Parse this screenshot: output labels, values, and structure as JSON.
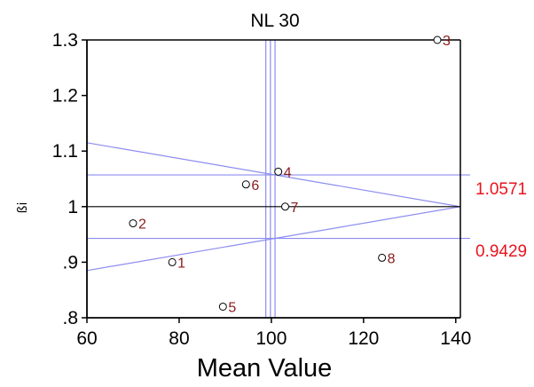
{
  "chart_data": {
    "type": "scatter",
    "title": "NL 30",
    "xlabel": "Mean Value",
    "ylabel": "ßi",
    "xlim": [
      60,
      141
    ],
    "ylim": [
      0.8,
      1.3
    ],
    "xticks": [
      "60",
      "80",
      "100",
      "120",
      "140"
    ],
    "yticks": [
      "1.3",
      "1.2",
      "1.1",
      "1",
      ".9",
      ".8"
    ],
    "points": [
      {
        "label": "1",
        "x": 78.5,
        "y": 0.9
      },
      {
        "label": "2",
        "x": 70.0,
        "y": 0.97
      },
      {
        "label": "3",
        "x": 136.0,
        "y": 1.3
      },
      {
        "label": "4",
        "x": 101.5,
        "y": 1.063
      },
      {
        "label": "5",
        "x": 89.5,
        "y": 0.82
      },
      {
        "label": "6",
        "x": 94.5,
        "y": 1.04
      },
      {
        "label": "7",
        "x": 103.0,
        "y": 1.0
      },
      {
        "label": "8",
        "x": 124.0,
        "y": 0.908
      }
    ],
    "reference_lines": {
      "upper_limit": 1.0571,
      "lower_limit": 0.9429,
      "unit_line": 1,
      "mean_vertical": [
        98.8,
        99.8,
        100.8
      ],
      "limit_labels": [
        "1.0571",
        "0.9429"
      ],
      "cone_apex": [
        141,
        1
      ],
      "cone_left": {
        "x": 60,
        "y_upper": 1.115,
        "y_lower": 0.885
      }
    },
    "colors": {
      "reference": "#8c8cf0",
      "point_label": "#8b1a1a",
      "limit_label": "#e8141e"
    },
    "grid": false
  }
}
